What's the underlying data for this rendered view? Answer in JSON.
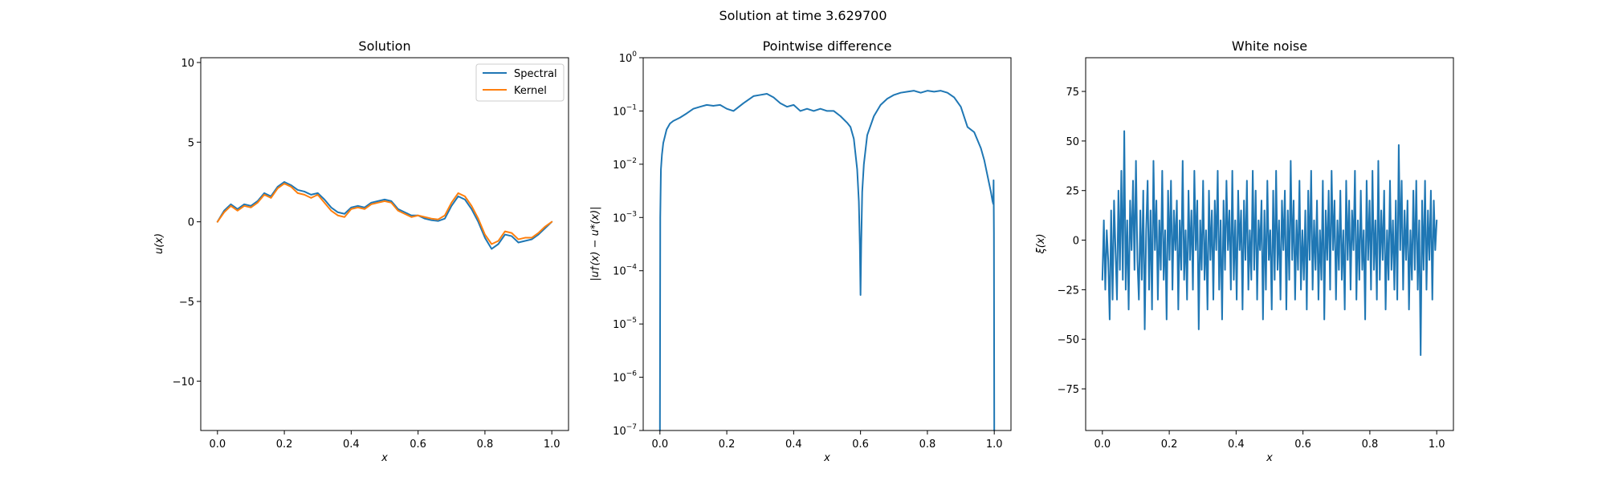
{
  "figure": {
    "suptitle": "Solution at time 3.629700"
  },
  "colors": {
    "spectral": "#1f77b4",
    "kernel": "#ff7f0e",
    "noise": "#1f77b4",
    "difference": "#1f77b4"
  },
  "chart_data": [
    {
      "type": "line",
      "title": "Solution",
      "xlabel": "x",
      "ylabel": "u(x)",
      "xlim": [
        -0.05,
        1.05
      ],
      "ylim": [
        -13.1,
        10.3
      ],
      "xticks": [
        0.0,
        0.2,
        0.4,
        0.6,
        0.8,
        1.0
      ],
      "xtick_labels": [
        "0.0",
        "0.2",
        "0.4",
        "0.6",
        "0.8",
        "1.0"
      ],
      "yticks": [
        -10,
        -5,
        0,
        5,
        10
      ],
      "ytick_labels": [
        "−10",
        "−5",
        "0",
        "5",
        "10"
      ],
      "legend": {
        "placement": "upper right",
        "entries": [
          "Spectral",
          "Kernel"
        ]
      },
      "grid": false,
      "series": [
        {
          "name": "Spectral",
          "color": "#1f77b4",
          "x": [
            0.0,
            0.02,
            0.04,
            0.06,
            0.08,
            0.1,
            0.12,
            0.14,
            0.16,
            0.18,
            0.2,
            0.22,
            0.24,
            0.26,
            0.28,
            0.3,
            0.32,
            0.34,
            0.36,
            0.38,
            0.4,
            0.42,
            0.44,
            0.46,
            0.48,
            0.5,
            0.52,
            0.54,
            0.56,
            0.58,
            0.6,
            0.62,
            0.64,
            0.66,
            0.68,
            0.7,
            0.72,
            0.74,
            0.76,
            0.78,
            0.8,
            0.82,
            0.84,
            0.86,
            0.88,
            0.9,
            0.92,
            0.94,
            0.96,
            0.98,
            1.0
          ],
          "y": [
            0.0,
            0.7,
            1.1,
            0.8,
            1.1,
            1.0,
            1.3,
            1.8,
            1.6,
            2.2,
            2.5,
            2.3,
            2.0,
            1.9,
            1.7,
            1.8,
            1.4,
            0.9,
            0.6,
            0.5,
            0.9,
            1.0,
            0.9,
            1.2,
            1.3,
            1.4,
            1.3,
            0.8,
            0.6,
            0.4,
            0.4,
            0.2,
            0.1,
            0.05,
            0.2,
            1.0,
            1.6,
            1.4,
            0.8,
            0.0,
            -1.0,
            -1.7,
            -1.4,
            -0.8,
            -0.9,
            -1.3,
            -1.2,
            -1.1,
            -0.8,
            -0.4,
            0.0
          ]
        },
        {
          "name": "Kernel",
          "color": "#ff7f0e",
          "x": [
            0.0,
            0.02,
            0.04,
            0.06,
            0.08,
            0.1,
            0.12,
            0.14,
            0.16,
            0.18,
            0.2,
            0.22,
            0.24,
            0.26,
            0.28,
            0.3,
            0.32,
            0.34,
            0.36,
            0.38,
            0.4,
            0.42,
            0.44,
            0.46,
            0.48,
            0.5,
            0.52,
            0.54,
            0.56,
            0.58,
            0.6,
            0.62,
            0.64,
            0.66,
            0.68,
            0.7,
            0.72,
            0.74,
            0.76,
            0.78,
            0.8,
            0.82,
            0.84,
            0.86,
            0.88,
            0.9,
            0.92,
            0.94,
            0.96,
            0.98,
            1.0
          ],
          "y": [
            0.0,
            0.6,
            1.0,
            0.7,
            1.0,
            0.9,
            1.2,
            1.7,
            1.5,
            2.1,
            2.4,
            2.2,
            1.8,
            1.7,
            1.5,
            1.7,
            1.2,
            0.7,
            0.4,
            0.3,
            0.8,
            0.9,
            0.8,
            1.1,
            1.2,
            1.3,
            1.2,
            0.7,
            0.5,
            0.3,
            0.4,
            0.3,
            0.2,
            0.15,
            0.4,
            1.2,
            1.8,
            1.6,
            1.0,
            0.2,
            -0.8,
            -1.4,
            -1.2,
            -0.6,
            -0.7,
            -1.1,
            -1.0,
            -1.0,
            -0.7,
            -0.3,
            0.0
          ]
        }
      ]
    },
    {
      "type": "line",
      "title": "Pointwise difference",
      "xlabel": "x",
      "ylabel": "|u†(x) − u*(x)|",
      "yscale": "log",
      "xlim": [
        -0.05,
        1.05
      ],
      "ylim": [
        1e-07,
        1
      ],
      "xticks": [
        0.0,
        0.2,
        0.4,
        0.6,
        0.8,
        1.0
      ],
      "xtick_labels": [
        "0.0",
        "0.2",
        "0.4",
        "0.6",
        "0.8",
        "1.0"
      ],
      "yticks": [
        1e-07,
        1e-06,
        1e-05,
        0.0001,
        0.001,
        0.01,
        0.1,
        1
      ],
      "ytick_exponents": [
        "−7",
        "−6",
        "−5",
        "−4",
        "−3",
        "−2",
        "−1",
        "0"
      ],
      "grid": false,
      "series": [
        {
          "name": "",
          "color": "#1f77b4",
          "x": [
            0.0,
            0.001,
            0.003,
            0.006,
            0.01,
            0.02,
            0.03,
            0.04,
            0.06,
            0.08,
            0.1,
            0.12,
            0.14,
            0.16,
            0.18,
            0.2,
            0.22,
            0.25,
            0.28,
            0.3,
            0.32,
            0.34,
            0.36,
            0.38,
            0.4,
            0.42,
            0.44,
            0.46,
            0.48,
            0.5,
            0.52,
            0.54,
            0.56,
            0.57,
            0.58,
            0.59,
            0.595,
            0.598,
            0.6,
            0.602,
            0.605,
            0.61,
            0.62,
            0.64,
            0.66,
            0.68,
            0.7,
            0.72,
            0.74,
            0.76,
            0.78,
            0.8,
            0.82,
            0.84,
            0.86,
            0.88,
            0.9,
            0.92,
            0.94,
            0.96,
            0.97,
            0.98,
            0.99,
            0.995,
            0.997,
            0.998,
            0.999,
            1.0
          ],
          "y": [
            1e-07,
            0.001,
            0.008,
            0.015,
            0.025,
            0.045,
            0.058,
            0.065,
            0.075,
            0.09,
            0.11,
            0.12,
            0.13,
            0.125,
            0.13,
            0.11,
            0.1,
            0.14,
            0.19,
            0.2,
            0.21,
            0.18,
            0.14,
            0.12,
            0.13,
            0.1,
            0.11,
            0.1,
            0.11,
            0.1,
            0.1,
            0.08,
            0.06,
            0.05,
            0.03,
            0.008,
            0.002,
            0.0003,
            3.5e-05,
            0.0003,
            0.003,
            0.01,
            0.035,
            0.08,
            0.13,
            0.17,
            0.2,
            0.22,
            0.23,
            0.24,
            0.22,
            0.24,
            0.23,
            0.24,
            0.22,
            0.18,
            0.12,
            0.05,
            0.04,
            0.02,
            0.012,
            0.006,
            0.003,
            0.002,
            0.0018,
            0.005,
            0.0005,
            1e-07
          ]
        }
      ]
    },
    {
      "type": "line",
      "title": "White noise",
      "xlabel": "x",
      "ylabel": "ξ(x)",
      "xlim": [
        -0.05,
        1.05
      ],
      "ylim": [
        -96,
        92
      ],
      "xticks": [
        0.0,
        0.2,
        0.4,
        0.6,
        0.8,
        1.0
      ],
      "xtick_labels": [
        "0.0",
        "0.2",
        "0.4",
        "0.6",
        "0.8",
        "1.0"
      ],
      "yticks": [
        -75,
        -50,
        -25,
        0,
        25,
        50,
        75
      ],
      "ytick_labels": [
        "−75",
        "−50",
        "−25",
        "0",
        "25",
        "50",
        "75"
      ],
      "grid": false,
      "series": [
        {
          "name": "",
          "color": "#1f77b4",
          "x_start": 0.0,
          "x_end": 1.0,
          "y": [
            -20,
            10,
            -25,
            5,
            -10,
            -40,
            15,
            -30,
            20,
            -5,
            -30,
            25,
            -15,
            35,
            -20,
            55,
            -25,
            10,
            -35,
            20,
            -5,
            30,
            -15,
            40,
            -10,
            -30,
            15,
            -20,
            25,
            -45,
            5,
            30,
            -25,
            15,
            -35,
            40,
            -5,
            20,
            -30,
            10,
            -15,
            35,
            -20,
            5,
            -40,
            25,
            -10,
            30,
            -25,
            15,
            -5,
            20,
            -35,
            10,
            -15,
            40,
            -20,
            5,
            -30,
            25,
            -10,
            15,
            -25,
            35,
            -5,
            20,
            -45,
            10,
            -15,
            30,
            -20,
            5,
            -35,
            25,
            -10,
            15,
            -30,
            20,
            -5,
            35,
            -25,
            10,
            -40,
            20,
            -15,
            30,
            -5,
            15,
            -25,
            35,
            -20,
            10,
            -30,
            25,
            -5,
            15,
            -35,
            20,
            -10,
            30,
            -25,
            5,
            -20,
            35,
            -15,
            25,
            -30,
            10,
            -5,
            20,
            -40,
            15,
            -25,
            30,
            -10,
            5,
            -35,
            25,
            -20,
            35,
            -15,
            10,
            -30,
            20,
            -5,
            25,
            -35,
            15,
            -20,
            40,
            -10,
            20,
            -30,
            10,
            -15,
            30,
            -25,
            5,
            -20,
            15,
            -35,
            25,
            -10,
            35,
            -25,
            10,
            -15,
            20,
            -30,
            5,
            -20,
            30,
            -40,
            15,
            -10,
            25,
            -25,
            35,
            -5,
            20,
            -30,
            10,
            -15,
            25,
            -20,
            5,
            -35,
            30,
            -10,
            20,
            -25,
            15,
            -5,
            35,
            -30,
            10,
            -20,
            25,
            -15,
            5,
            -40,
            30,
            -10,
            20,
            -25,
            35,
            -15,
            10,
            -30,
            40,
            -20,
            15,
            -10,
            25,
            -35,
            5,
            -20,
            30,
            -15,
            10,
            -25,
            20,
            -30,
            48,
            -5,
            30,
            -25,
            15,
            -10,
            20,
            -35,
            5,
            -20,
            25,
            -15,
            30,
            -25,
            10,
            -58,
            20,
            -15,
            30,
            -25,
            15,
            -10,
            25,
            -30,
            20,
            -5,
            10
          ]
        }
      ]
    }
  ]
}
